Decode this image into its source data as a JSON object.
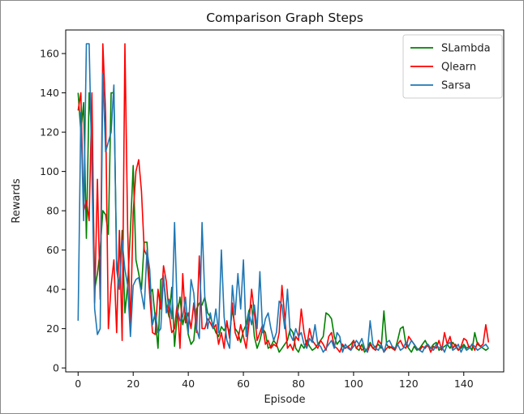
{
  "chart_data": {
    "type": "line",
    "title": "Comparison Graph Steps",
    "xlabel": "Episode",
    "ylabel": "Rewards",
    "xlim": [
      -4.5,
      154.5
    ],
    "ylim": [
      -2,
      172
    ],
    "xticks": [
      0,
      20,
      40,
      60,
      80,
      100,
      120,
      140
    ],
    "yticks": [
      0,
      20,
      40,
      60,
      80,
      100,
      120,
      140,
      160
    ],
    "grid": false,
    "legend_position": "top-right",
    "series": [
      {
        "name": "SLambda",
        "color": "#008000",
        "values": [
          140,
          120,
          135,
          66,
          140,
          118,
          40,
          48,
          60,
          80,
          78,
          68,
          140,
          140,
          55,
          40,
          70,
          28,
          42,
          70,
          103,
          55,
          48,
          40,
          64,
          64,
          38,
          40,
          25,
          10,
          45,
          46,
          32,
          26,
          41,
          11,
          27,
          36,
          22,
          28,
          17,
          12,
          14,
          30,
          33,
          32,
          36,
          28,
          26,
          22,
          18,
          16,
          21,
          19,
          22,
          18,
          30,
          20,
          18,
          13,
          19,
          22,
          29,
          32,
          16,
          10,
          14,
          20,
          18,
          10,
          11,
          14,
          12,
          8,
          10,
          12,
          14,
          20,
          18,
          10,
          8,
          12,
          10,
          14,
          11,
          9,
          10,
          12,
          14,
          16,
          28,
          27,
          25,
          16,
          12,
          14,
          11,
          10,
          11,
          12,
          14,
          10,
          9,
          12,
          8,
          10,
          13,
          10,
          11,
          12,
          10,
          29,
          12,
          10,
          11,
          9,
          14,
          20,
          21,
          12,
          10,
          8,
          11,
          9,
          10,
          12,
          14,
          11,
          10,
          12,
          13,
          9,
          10,
          11,
          12,
          10,
          13,
          11,
          9,
          10,
          12,
          10,
          11,
          9,
          18,
          12,
          11,
          10,
          9,
          10
        ]
      },
      {
        "name": "Qlearn",
        "color": "#ff0000",
        "values": [
          131,
          140,
          80,
          85,
          75,
          140,
          33,
          96,
          35,
          165,
          130,
          20,
          42,
          55,
          18,
          70,
          14,
          165,
          70,
          20,
          79,
          100,
          106,
          90,
          60,
          57,
          37,
          18,
          17,
          40,
          30,
          52,
          44,
          28,
          18,
          20,
          33,
          10,
          48,
          23,
          28,
          20,
          33,
          18,
          57,
          20,
          20,
          25,
          23,
          20,
          22,
          12,
          18,
          10,
          24,
          15,
          33,
          18,
          14,
          22,
          16,
          10,
          22,
          40,
          28,
          14,
          18,
          22,
          12,
          14,
          10,
          12,
          11,
          18,
          42,
          26,
          10,
          12,
          9,
          16,
          14,
          30,
          18,
          11,
          20,
          14,
          12,
          10,
          14,
          12,
          9,
          16,
          18,
          11,
          10,
          8,
          12,
          10,
          11,
          9,
          14,
          10,
          12,
          9,
          10,
          8,
          12,
          10,
          9,
          14,
          12,
          8,
          10,
          11,
          10,
          9,
          12,
          14,
          11,
          10,
          16,
          14,
          12,
          10,
          9,
          11,
          10,
          12,
          8,
          11,
          10,
          14,
          9,
          18,
          12,
          16,
          10,
          12,
          9,
          11,
          15,
          14,
          10,
          12,
          9,
          13,
          11,
          12,
          22,
          13
        ]
      },
      {
        "name": "Sarsa",
        "color": "#1f77b4",
        "values": [
          24,
          130,
          75,
          165,
          165,
          100,
          30,
          17,
          20,
          150,
          110,
          115,
          120,
          144,
          50,
          40,
          65,
          50,
          42,
          16,
          42,
          45,
          46,
          38,
          30,
          60,
          50,
          22,
          28,
          18,
          20,
          47,
          28,
          35,
          25,
          74,
          30,
          24,
          26,
          36,
          18,
          45,
          38,
          20,
          15,
          74,
          36,
          20,
          28,
          20,
          30,
          18,
          60,
          26,
          14,
          10,
          42,
          27,
          48,
          30,
          55,
          16,
          28,
          22,
          32,
          20,
          49,
          18,
          25,
          28,
          20,
          14,
          18,
          34,
          32,
          20,
          40,
          17,
          14,
          20,
          16,
          18,
          12,
          10,
          15,
          13,
          22,
          12,
          11,
          8,
          10,
          12,
          14,
          10,
          18,
          16,
          8,
          12,
          10,
          9,
          11,
          14,
          12,
          15,
          10,
          8,
          24,
          12,
          10,
          9,
          12,
          8,
          13,
          14,
          11,
          10,
          12,
          9,
          10,
          13,
          11,
          14,
          12,
          10,
          9,
          8,
          11,
          12,
          10,
          9,
          12,
          10,
          11,
          8,
          12,
          13,
          9,
          10,
          12,
          8,
          11,
          9,
          10,
          12,
          11,
          9,
          10,
          11,
          12,
          10
        ]
      }
    ]
  }
}
